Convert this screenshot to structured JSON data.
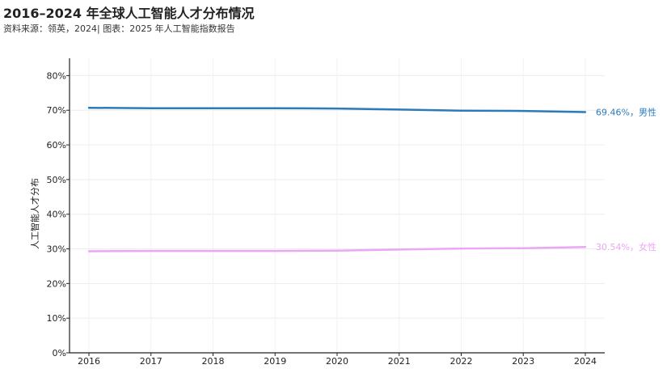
{
  "title": "2016–2024 年全球人工智能人才分布情况",
  "subtitle": "资料来源：领英，2024| 图表：2025 年人工智能指数报告",
  "chart_data": {
    "type": "line",
    "x": [
      2016,
      2017,
      2018,
      2019,
      2020,
      2021,
      2022,
      2023,
      2024
    ],
    "ylabel": "人工智能人才分布",
    "ylim": [
      0,
      85
    ],
    "yticks": [
      0,
      10,
      20,
      30,
      40,
      50,
      60,
      70,
      80
    ],
    "ytick_labels": [
      "0%",
      "10%",
      "20%",
      "30%",
      "40%",
      "50%",
      "60%",
      "70%",
      "80%"
    ],
    "grid": true,
    "series": [
      {
        "name": "男性",
        "end_label": "69.46%，男性",
        "color": "#2b7bb9",
        "values": [
          70.7,
          70.6,
          70.6,
          70.6,
          70.5,
          70.2,
          69.9,
          69.8,
          69.46
        ]
      },
      {
        "name": "女性",
        "end_label": "30.54%，女性",
        "color": "#e9a8f2",
        "values": [
          29.3,
          29.4,
          29.4,
          29.4,
          29.5,
          29.8,
          30.1,
          30.2,
          30.54
        ]
      }
    ]
  }
}
